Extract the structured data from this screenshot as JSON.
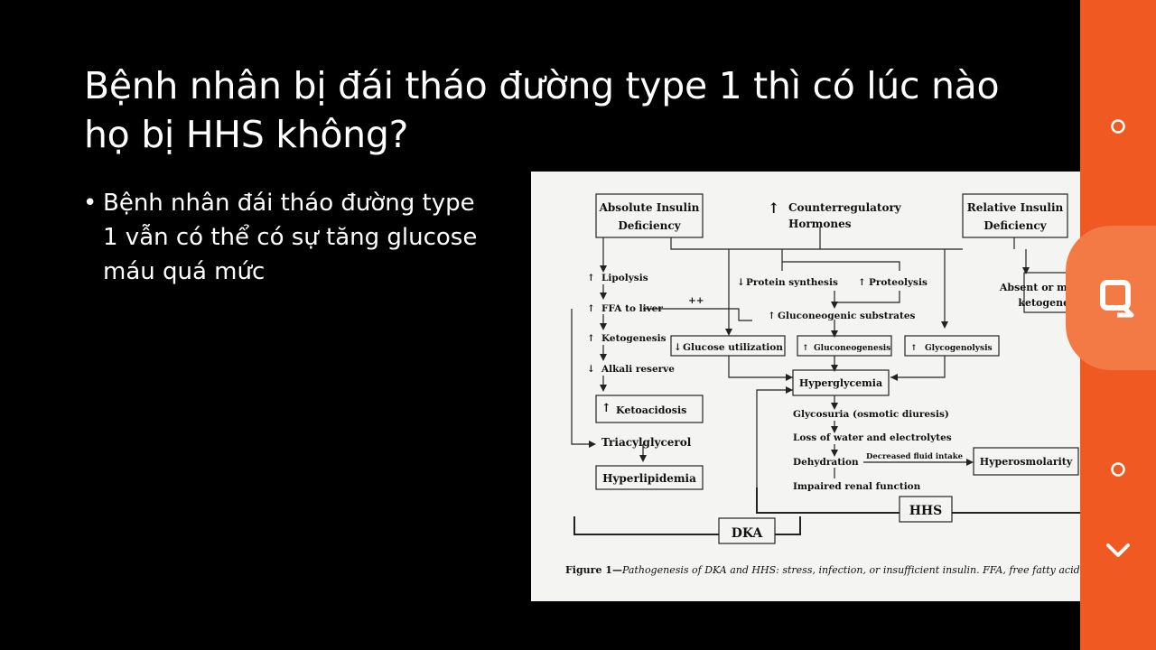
{
  "slide": {
    "title": "Bệnh nhân bị đái tháo đường type 1 thì có lúc nào họ bị HHS không?",
    "bullet": "Bệnh nhân đái tháo đường type 1 vẫn có thể có sự tăng glucose máu quá mức",
    "bullet_marker": "•"
  },
  "figure": {
    "boxes": {
      "absolute_insulin_1": "Absolute Insulin",
      "absolute_insulin_2": "Deficiency",
      "counterreg_1": "Counterregulatory",
      "counterreg_2": "Hormones",
      "relative_insulin_1": "Relative Insulin",
      "relative_insulin_2": "Deficiency",
      "lipolysis": "Lipolysis",
      "ffa": "FFA to liver",
      "plusplus": "++",
      "ketogenesis": "Ketogenesis",
      "alkali": "Alkali reserve",
      "ketoacidosis": "Ketoacidosis",
      "triacyl": "Triacylglycerol",
      "hyperlipidemia": "Hyperlipidemia",
      "protein_synth": "Protein synthesis",
      "proteolysis": "Proteolysis",
      "gluconeo_sub": "Gluconeogenic substrates",
      "glucose_util": "Glucose utilization",
      "gluconeogenesis": "Gluconeogenesis",
      "glycogenolysis": "Glycogenolysis",
      "absent_keto_1": "Absent or minimal",
      "absent_keto_2": "ketogenesis",
      "hyperglycemia": "Hyperglycemia",
      "glycosuria": "Glycosuria (osmotic diuresis)",
      "loss_water": "Loss of water and electrolytes",
      "dehydration": "Dehydration",
      "decreased_fluid": "Decreased fluid intake",
      "hyperosmolarity": "Hyperosmolarity",
      "impaired_renal": "Impaired renal function",
      "hhs": "HHS",
      "dka": "DKA",
      "up_arrow": "↑",
      "down_arrow": "↓"
    },
    "caption_label": "Figure 1—",
    "caption_text": "Pathogenesis of DKA and HHS: stress, infection, or insufficient insulin. FFA, free fatty acid."
  },
  "side_panel": {
    "color": "#f05a22",
    "bubble_color": "#f47a45",
    "buttons": [
      "circle-icon",
      "search-icon",
      "circle-icon",
      "chevron-down-icon"
    ]
  }
}
